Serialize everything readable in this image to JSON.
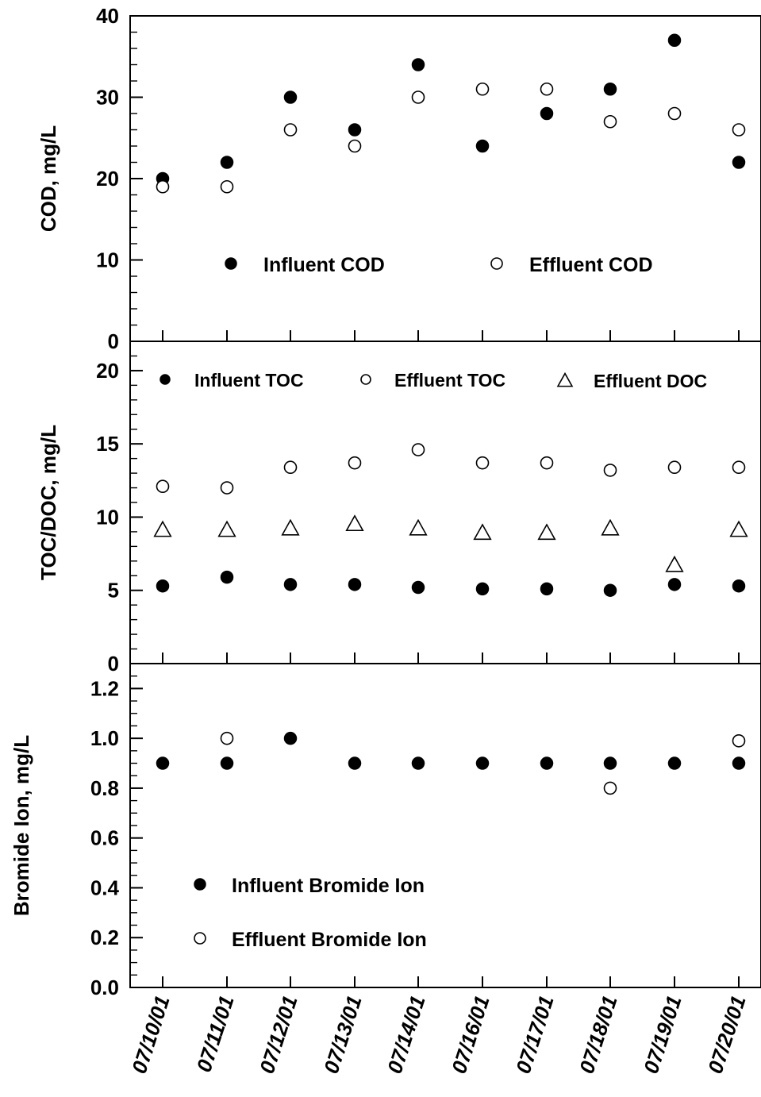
{
  "chart_data": {
    "type": "scatter",
    "x": [
      "07/10/01",
      "07/11/01",
      "07/12/01",
      "07/13/01",
      "07/14/01",
      "07/16/01",
      "07/17/01",
      "07/18/01",
      "07/19/01",
      "07/20/01"
    ],
    "panels": [
      {
        "id": "cod",
        "ylabel": "COD, mg/L",
        "ylim": [
          0,
          40
        ],
        "yticks": [
          "0",
          "10",
          "20",
          "30",
          "40"
        ],
        "series": [
          {
            "name": "Influent COD",
            "marker": "filled-circle",
            "values": [
              20,
              22,
              30,
              26,
              34,
              24,
              28,
              31,
              37,
              22
            ]
          },
          {
            "name": "Effluent COD",
            "marker": "open-circle",
            "values": [
              19,
              19,
              26,
              24,
              30,
              31,
              31,
              27,
              28,
              26
            ]
          }
        ]
      },
      {
        "id": "toc",
        "ylabel": "TOC/DOC, mg/L",
        "ylim": [
          0,
          22
        ],
        "yticks": [
          "0",
          "5",
          "10",
          "15",
          "20"
        ],
        "series": [
          {
            "name": "Influent TOC",
            "marker": "filled-circle",
            "values": [
              5.3,
              5.9,
              5.4,
              5.4,
              5.2,
              5.1,
              5.1,
              5.0,
              5.4,
              5.3
            ]
          },
          {
            "name": "Effluent TOC",
            "marker": "open-circle",
            "values": [
              12.1,
              12.0,
              13.4,
              13.7,
              14.6,
              13.7,
              13.7,
              13.2,
              13.4,
              13.4
            ]
          },
          {
            "name": "Effluent DOC",
            "marker": "open-triangle",
            "values": [
              9.1,
              9.1,
              9.2,
              9.5,
              9.2,
              8.9,
              8.9,
              9.2,
              6.7,
              9.1
            ]
          }
        ]
      },
      {
        "id": "bromide",
        "ylabel": "Bromide Ion, mg/L",
        "ylim": [
          0,
          1.3
        ],
        "yticks": [
          "0.0",
          "0.2",
          "0.4",
          "0.6",
          "0.8",
          "1.0",
          "1.2"
        ],
        "series": [
          {
            "name": "Influent Bromide Ion",
            "marker": "filled-circle",
            "values": [
              0.9,
              0.9,
              1.0,
              0.9,
              0.9,
              0.9,
              0.9,
              0.9,
              0.9,
              0.9
            ]
          },
          {
            "name": "Effluent Bromide Ion",
            "marker": "open-circle",
            "values": [
              null,
              1.0,
              null,
              null,
              null,
              null,
              null,
              0.8,
              null,
              0.99
            ]
          }
        ]
      }
    ],
    "grid": false,
    "legend_placement": [
      "inside-lower",
      "inside-top",
      "inside-lower-left"
    ]
  }
}
